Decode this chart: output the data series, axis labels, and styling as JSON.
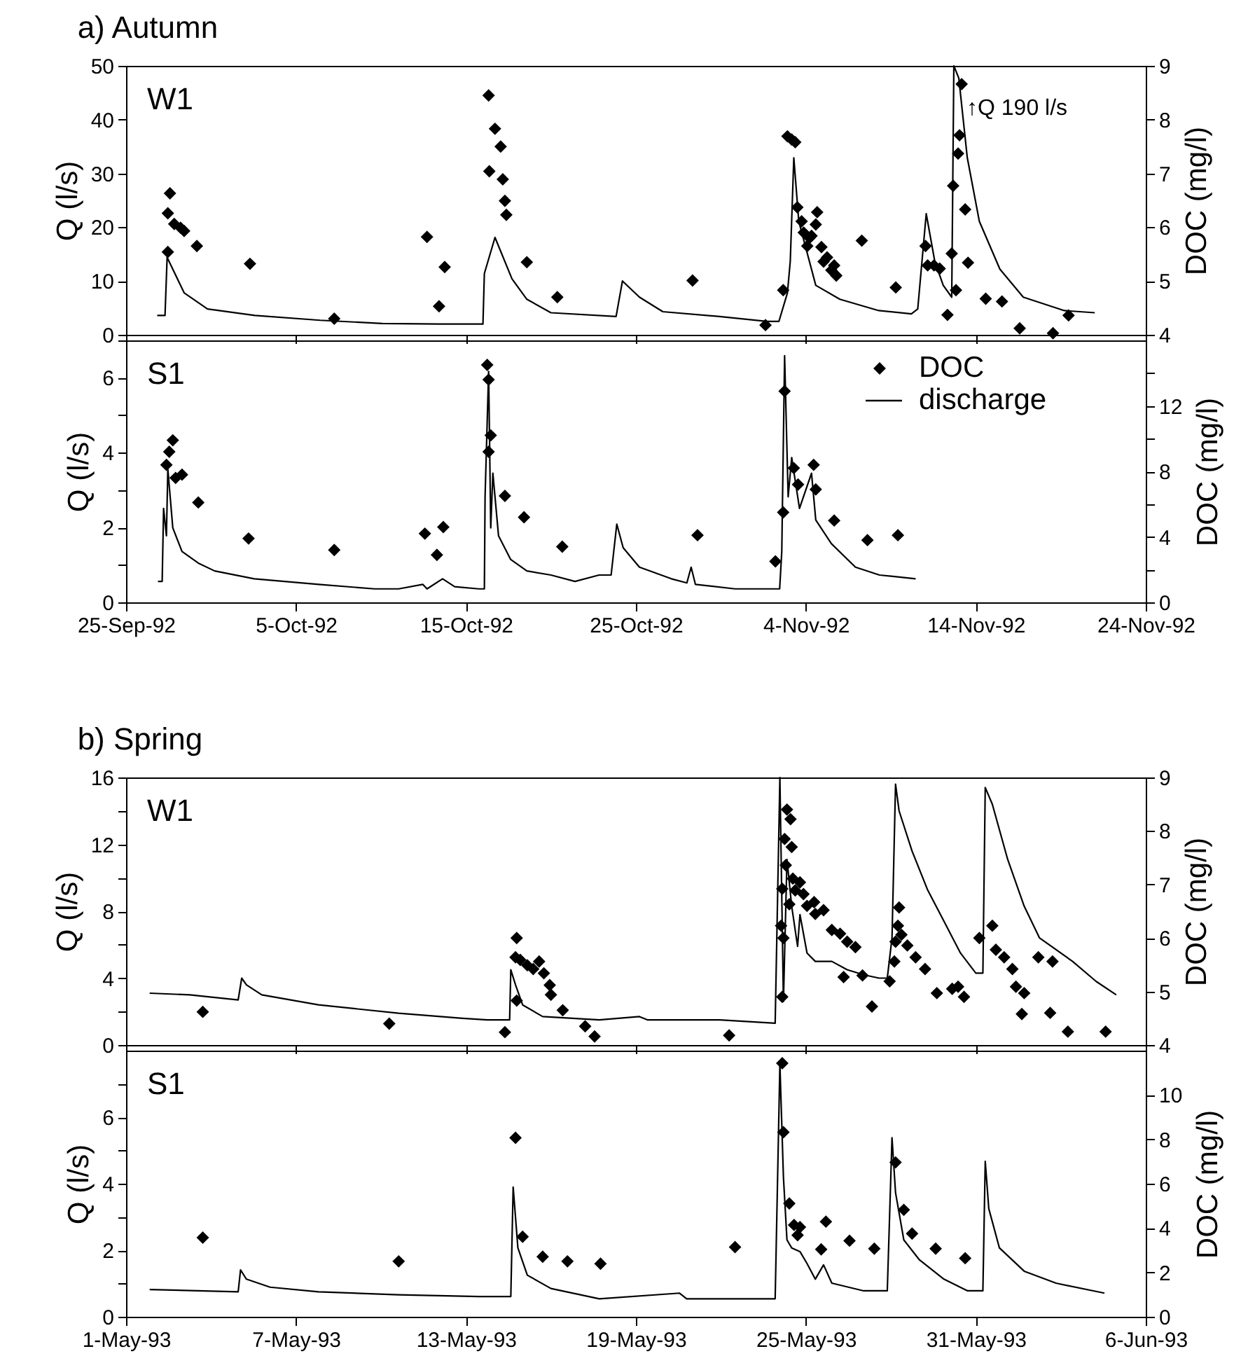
{
  "chart_data": [
    {
      "type": "line",
      "title": "a) Autumn",
      "ylabel": "Q (l/s)",
      "y2label": "DOC (mg/l)",
      "annotations": [
        "W1",
        "↑Q 190 l/s"
      ],
      "xlim": [
        "1992-09-25",
        "1992-11-24"
      ],
      "xticks": [
        {
          "value": "1992-09-25",
          "label": null
        },
        {
          "value": "1992-10-05",
          "label": null
        },
        {
          "value": "1992-10-15",
          "label": null
        },
        {
          "value": "1992-10-25",
          "label": null
        },
        {
          "value": "1992-11-04",
          "label": null
        },
        {
          "value": "1992-11-14",
          "label": null
        },
        {
          "value": "1992-11-24",
          "label": null
        }
      ],
      "ylim": [
        0,
        50
      ],
      "yticks": [
        0,
        10,
        20,
        30,
        40,
        50
      ],
      "y2lim": [
        4,
        9
      ],
      "y2ticks": [
        4,
        5,
        6,
        7,
        8,
        9
      ],
      "tick_labels": "y",
      "series": [
        {
          "type": "scatter",
          "axis": "y2",
          "color": "#000000",
          "marker": "diamond",
          "x": [
            "1992-09-27T11:00",
            "1992-09-27T11:00",
            "1992-09-27T14:00",
            "1992-09-27T20:00",
            "1992-09-28T05:00",
            "1992-09-28T10:00",
            "1992-09-29T04:00",
            "1992-10-02T07:00",
            "1992-10-07T06:00",
            "1992-10-12T17:00",
            "1992-10-13T10:00",
            "1992-10-13T18:00",
            "1992-10-16T08:00",
            "1992-10-16T09:00",
            "1992-10-16T17:00",
            "1992-10-17T01:00",
            "1992-10-17T04:00",
            "1992-10-17T07:00",
            "1992-10-17T09:00",
            "1992-10-18T14:00",
            "1992-10-20T09:00",
            "1992-10-28T08:00",
            "1992-11-01T15:00",
            "1992-11-02T16:00",
            "1992-11-02T22:00",
            "1992-11-03T04:00",
            "1992-11-03T09:00",
            "1992-11-03T12:00",
            "1992-11-03T18:00",
            "1992-11-03T21:00",
            "1992-11-04T02:00",
            "1992-11-04T05:00",
            "1992-11-04T08:00",
            "1992-11-04T14:00",
            "1992-11-04T16:00",
            "1992-11-04T22:00",
            "1992-11-05T01:00",
            "1992-11-05T06:00",
            "1992-11-05T12:00",
            "1992-11-05T16:00",
            "1992-11-05T19:00",
            "1992-11-07T07:00",
            "1992-11-09T07:00",
            "1992-11-11T01:00",
            "1992-11-11T04:00",
            "1992-11-11T13:00",
            "1992-11-11T21:00",
            "1992-11-12T08:00",
            "1992-11-12T14:00",
            "1992-11-12T16:00",
            "1992-11-12T20:00",
            "1992-11-12T23:00",
            "1992-11-13T01:00",
            "1992-11-13T04:00",
            "1992-11-13T09:00",
            "1992-11-13T13:00",
            "1992-11-14T14:00",
            "1992-11-15T13:00",
            "1992-11-16T14:00",
            "1992-11-18T13:00",
            "1992-11-19T11:00"
          ],
          "values": [
            5.54,
            6.26,
            6.63,
            6.06,
            5.99,
            5.93,
            5.65,
            5.32,
            4.3,
            5.82,
            4.53,
            5.26,
            8.45,
            7.04,
            7.83,
            7.5,
            6.89,
            6.49,
            6.23,
            5.35,
            4.7,
            5.01,
            4.18,
            4.83,
            7.69,
            7.63,
            7.58,
            6.37,
            6.11,
            5.9,
            5.65,
            5.8,
            5.84,
            6.05,
            6.28,
            5.63,
            5.36,
            5.44,
            5.2,
            5.29,
            5.1,
            5.75,
            4.88,
            5.65,
            5.29,
            5.29,
            5.23,
            4.37,
            5.51,
            6.77,
            4.83,
            7.37,
            7.71,
            8.66,
            6.33,
            5.34,
            4.67,
            4.62,
            4.12,
            4.03,
            4.36
          ]
        },
        {
          "color": "#000000",
          "x": [
            "1992-09-26T20:00",
            "1992-09-27T07:00",
            "1992-09-27T10:00",
            "1992-09-28T10:00",
            "1992-09-29T19:00",
            "1992-10-02T14:00",
            "1992-10-06T10:00",
            "1992-10-10T02:00",
            "1992-10-13T10:00",
            "1992-10-16T00:00",
            "1992-10-16T02:00",
            "1992-10-16T17:00",
            "1992-10-17T17:00",
            "1992-10-18T14:00",
            "1992-10-20T00:00",
            "1992-10-23T20:00",
            "1992-10-24T05:00",
            "1992-10-25T05:00",
            "1992-10-26T14:00",
            "1992-10-29T22:00",
            "1992-11-01T17:00",
            "1992-11-02T10:00",
            "1992-11-02T22:00",
            "1992-11-03T02:00",
            "1992-11-03T07:00",
            "1992-11-03T14:00",
            "1992-11-04T14:00",
            "1992-11-06T00:00",
            "1992-11-08T07:00",
            "1992-11-10T05:00",
            "1992-11-10T14:00",
            "1992-11-11T02:00",
            "1992-11-11T14:00",
            "1992-11-12T02:00",
            "1992-11-12T14:00",
            "1992-11-12T17:00",
            "1992-11-13T00:00",
            "1992-11-13T12:00",
            "1992-11-14T05:00",
            "1992-11-15T10:00",
            "1992-11-16T19:00",
            "1992-11-19T05:00",
            "1992-11-21T00:00"
          ],
          "values": [
            3.6,
            3.6,
            14.4,
            7.8,
            4.8,
            3.6,
            2.7,
            2.1,
            2.0,
            2.0,
            11.4,
            18.1,
            10.4,
            6.6,
            4.1,
            3.4,
            10.0,
            7.0,
            4.3,
            3.4,
            2.5,
            2.5,
            7.8,
            13.7,
            32.9,
            21.1,
            9.2,
            6.6,
            4.5,
            3.9,
            4.8,
            22.5,
            13.7,
            9.2,
            7.0,
            50,
            47.7,
            32.9,
            21.1,
            12.2,
            7.0,
            4.5,
            4.1
          ]
        }
      ]
    },
    {
      "type": "line",
      "ylabel": "Q (l/s)",
      "y2label": "DOC (mg/l)",
      "annotations": [
        "S1"
      ],
      "legend": "top right",
      "xlim": [
        "1992-09-25",
        "1992-11-24"
      ],
      "xticks": [
        {
          "value": "1992-09-25",
          "label": "25-Sep-92"
        },
        {
          "value": "1992-10-05",
          "label": "5-Oct-92"
        },
        {
          "value": "1992-10-15",
          "label": "15-Oct-92"
        },
        {
          "value": "1992-10-25",
          "label": "25-Oct-92"
        },
        {
          "value": "1992-11-04",
          "label": "4-Nov-92"
        },
        {
          "value": "1992-11-14",
          "label": "14-Nov-92"
        },
        {
          "value": "1992-11-24",
          "label": "24-Nov-92"
        }
      ],
      "ylim": [
        0,
        7
      ],
      "yticks": [
        0,
        {
          "value": 1,
          "label": null
        },
        2,
        {
          "value": 3,
          "label": null
        },
        4,
        {
          "value": 5,
          "label": null
        },
        6,
        {
          "value": 7,
          "label": null
        }
      ],
      "y2lim": [
        0,
        16
      ],
      "y2ticks": [
        0,
        {
          "value": 2,
          "label": null
        },
        4,
        {
          "value": 6,
          "label": null
        },
        8,
        {
          "value": 10,
          "label": null
        },
        12,
        {
          "value": 14,
          "label": null
        }
      ],
      "series": [
        {
          "name": "DOC",
          "type": "scatter",
          "axis": "y2",
          "color": "#000000",
          "marker": "diamond",
          "x": [
            "1992-09-27T09:00",
            "1992-09-27T13:00",
            "1992-09-27T18:00",
            "1992-09-27T22:00",
            "1992-09-28T07:00",
            "1992-09-29T06:00",
            "1992-10-02T05:00",
            "1992-10-07T06:00",
            "1992-10-12T14:00",
            "1992-10-13T07:00",
            "1992-10-13T16:00",
            "1992-10-16T06:00",
            "1992-10-16T08:00",
            "1992-10-16T08:00",
            "1992-10-16T11:00",
            "1992-10-17T07:00",
            "1992-10-18T10:00",
            "1992-10-20T16:00",
            "1992-10-28T15:00",
            "1992-11-02T05:00",
            "1992-11-02T16:00",
            "1992-11-02T18:00",
            "1992-11-03T07:00",
            "1992-11-03T13:00",
            "1992-11-04T11:00",
            "1992-11-04T14:00",
            "1992-11-05T16:00",
            "1992-11-07T15:00",
            "1992-11-09T10:00"
          ],
          "values": [
            8.4,
            9.2,
            9.9,
            7.6,
            7.8,
            6.1,
            3.9,
            3.2,
            4.2,
            2.9,
            4.6,
            14.5,
            13.6,
            9.2,
            10.2,
            6.5,
            5.2,
            3.4,
            4.1,
            2.5,
            5.5,
            12.9,
            8.2,
            7.2,
            8.4,
            6.9,
            5.0,
            3.8,
            4.1
          ]
        },
        {
          "name": "discharge",
          "color": "#000000",
          "x": [
            "1992-09-26T21:00",
            "1992-09-27T03:00",
            "1992-09-27T05:00",
            "1992-09-27T09:00",
            "1992-09-27T11:00",
            "1992-09-27T18:00",
            "1992-09-28T07:00",
            "1992-09-29T06:00",
            "1992-09-30T05:00",
            "1992-10-02T13:00",
            "1992-10-06T08:00",
            "1992-10-09T15:00",
            "1992-10-11T01:00",
            "1992-10-12T11:00",
            "1992-10-12T17:00",
            "1992-10-13T15:00",
            "1992-10-14T08:00",
            "1992-10-15T18:00",
            "1992-10-16T02:00",
            "1992-10-16T03:00",
            "1992-10-16T08:00",
            "1992-10-16T11:00",
            "1992-10-16T14:00",
            "1992-10-16T22:00",
            "1992-10-17T15:00",
            "1992-10-18T14:00",
            "1992-10-20T00:00",
            "1992-10-21T10:00",
            "1992-10-22T20:00",
            "1992-10-23T13:00",
            "1992-10-23T21:00",
            "1992-10-24T06:00",
            "1992-10-25T05:00",
            "1992-10-27T02:00",
            "1992-10-28T00:00",
            "1992-10-28T06:00",
            "1992-10-28T12:00",
            "1992-10-30T20:00",
            "1992-11-02T11:00",
            "1992-11-02T14:00",
            "1992-11-02T18:00",
            "1992-11-02T23:00",
            "1992-11-03T04:00",
            "1992-11-03T15:00",
            "1992-11-04T08:00",
            "1992-11-04T14:00",
            "1992-11-05T12:00",
            "1992-11-06T22:00",
            "1992-11-08T08:00",
            "1992-11-10T11:00"
          ],
          "values": [
            0.56,
            0.56,
            2.51,
            1.78,
            3.56,
            1.99,
            1.36,
            1.05,
            0.84,
            0.63,
            0.48,
            0.36,
            0.36,
            0.48,
            0.36,
            0.63,
            0.42,
            0.36,
            0.36,
            2.82,
            6.17,
            1.99,
            3.45,
            1.78,
            1.15,
            0.84,
            0.73,
            0.56,
            0.73,
            0.73,
            2.09,
            1.46,
            0.94,
            0.63,
            0.52,
            0.94,
            0.48,
            0.36,
            0.36,
            1.36,
            6.59,
            2.82,
            3.87,
            2.51,
            3.45,
            2.2,
            1.57,
            0.94,
            0.73,
            0.63
          ]
        }
      ]
    },
    {
      "type": "line",
      "title": "b) Spring",
      "ylabel": "Q (l/s)",
      "y2label": "DOC (mg/l)",
      "annotations": [
        "W1"
      ],
      "xlim": [
        "1993-05-01",
        "1993-06-06"
      ],
      "xticks": [
        {
          "value": "1993-05-01",
          "label": null
        },
        {
          "value": "1993-05-07",
          "label": null
        },
        {
          "value": "1993-05-13",
          "label": null
        },
        {
          "value": "1993-05-19",
          "label": null
        },
        {
          "value": "1993-05-25",
          "label": null
        },
        {
          "value": "1993-05-31",
          "label": null
        },
        {
          "value": "1993-06-06",
          "label": null
        }
      ],
      "ylim": [
        0,
        16
      ],
      "yticks": [
        0,
        {
          "value": 2,
          "label": null
        },
        4,
        {
          "value": 6,
          "label": null
        },
        8,
        {
          "value": 10,
          "label": null
        },
        12,
        {
          "value": 14,
          "label": null
        },
        16
      ],
      "y2lim": [
        4,
        9
      ],
      "y2ticks": [
        4,
        5,
        6,
        7,
        8,
        9
      ],
      "tick_labels": "y",
      "series": [
        {
          "type": "scatter",
          "axis": "y2",
          "color": "#000000",
          "marker": "diamond",
          "x": [
            "1993-05-03T17:00",
            "1993-05-10T07:00",
            "1993-05-14T09:00",
            "1993-05-14T18:00",
            "1993-05-14T19:00",
            "1993-05-14T19:00",
            "1993-05-14T22:00",
            "1993-05-15T04:00",
            "1993-05-15T09:00",
            "1993-05-15T14:00",
            "1993-05-15T18:00",
            "1993-05-15T23:00",
            "1993-05-16T00:00",
            "1993-05-16T10:00",
            "1993-05-17T05:00",
            "1993-05-17T13:00",
            "1993-05-22T07:00",
            "1993-05-24T03:00",
            "1993-05-24T04:00",
            "1993-05-24T04:00",
            "1993-05-24T05:00",
            "1993-05-24T06:00",
            "1993-05-24T07:00",
            "1993-05-24T08:00",
            "1993-05-24T10:00",
            "1993-05-24T11:00",
            "1993-05-24T12:00",
            "1993-05-24T13:00",
            "1993-05-24T15:00",
            "1993-05-24T19:00",
            "1993-05-24T22:00",
            "1993-05-25T01:00",
            "1993-05-25T07:00",
            "1993-05-25T08:00",
            "1993-05-25T15:00",
            "1993-05-25T22:00",
            "1993-05-26T05:00",
            "1993-05-26T08:00",
            "1993-05-26T11:00",
            "1993-05-26T18:00",
            "1993-05-27T00:00",
            "1993-05-27T08:00",
            "1993-05-27T23:00",
            "1993-05-28T03:00",
            "1993-05-28T04:00",
            "1993-05-28T06:00",
            "1993-05-28T07:00",
            "1993-05-28T09:00",
            "1993-05-28T14:00",
            "1993-05-28T21:00",
            "1993-05-29T05:00",
            "1993-05-29T15:00",
            "1993-05-30T04:00",
            "1993-05-30T09:00",
            "1993-05-30T14:00",
            "1993-05-31T03:00",
            "1993-05-31T14:00",
            "1993-05-31T17:00",
            "1993-06-01T00:00",
            "1993-06-01T07:00",
            "1993-06-01T10:00",
            "1993-06-01T15:00",
            "1993-06-01T17:00",
            "1993-06-02T05:00",
            "1993-06-02T15:00",
            "1993-06-02T17:00",
            "1993-06-03T06:00",
            "1993-06-04T14:00"
          ],
          "values": [
            4.62,
            4.4,
            4.24,
            5.64,
            6.0,
            4.83,
            5.59,
            5.49,
            5.42,
            5.56,
            5.34,
            5.12,
            4.94,
            4.65,
            4.35,
            4.16,
            4.18,
            6.23,
            4.9,
            6.92,
            6.0,
            7.85,
            7.36,
            8.4,
            6.63,
            8.22,
            7.7,
            7.11,
            6.89,
            7.04,
            6.82,
            6.6,
            6.67,
            6.45,
            6.52,
            6.15,
            6.08,
            5.27,
            5.93,
            5.83,
            5.3,
            4.72,
            5.19,
            5.56,
            5.93,
            6.23,
            6.57,
            6.06,
            5.86,
            5.64,
            5.42,
            4.97,
            5.05,
            5.09,
            4.9,
            6.0,
            6.23,
            5.78,
            5.64,
            5.42,
            5.09,
            4.58,
            4.97,
            5.64,
            4.6,
            5.56,
            4.25,
            4.25
          ]
        },
        {
          "color": "#000000",
          "x": [
            "1993-05-01T20:00",
            "1993-05-03T06:00",
            "1993-05-04T23:00",
            "1993-05-05T02:00",
            "1993-05-05T06:00",
            "1993-05-05T19:00",
            "1993-05-07T19:00",
            "1993-05-10T15:00",
            "1993-05-12T21:00",
            "1993-05-13T18:00",
            "1993-05-14T13:00",
            "1993-05-14T14:00",
            "1993-05-14T18:00",
            "1993-05-15T00:00",
            "1993-05-15T17:00",
            "1993-05-17T17:00",
            "1993-05-19T03:00",
            "1993-05-19T10:00",
            "1993-05-21T23:00",
            "1993-05-23T22:00",
            "1993-05-24T02:00",
            "1993-05-24T05:00",
            "1993-05-24T08:00",
            "1993-05-24T12:00",
            "1993-05-24T17:00",
            "1993-05-24T19:00",
            "1993-05-25T01:00",
            "1993-05-25T08:00",
            "1993-05-25T22:00",
            "1993-05-26T11:00",
            "1993-05-27T01:00",
            "1993-05-27T14:00",
            "1993-05-27T21:00",
            "1993-05-28T01:00",
            "1993-05-28T04:00",
            "1993-05-28T07:00",
            "1993-05-28T18:00",
            "1993-05-29T07:00",
            "1993-05-29T21:00",
            "1993-05-30T11:00",
            "1993-05-31T00:00",
            "1993-05-31T06:00",
            "1993-05-31T08:00",
            "1993-05-31T14:00",
            "1993-06-01T03:00",
            "1993-06-01T17:00",
            "1993-06-02T06:00",
            "1993-06-03T10:00",
            "1993-06-04T06:00",
            "1993-06-04T23:00"
          ],
          "values": [
            3.1,
            3.0,
            2.7,
            4.0,
            3.6,
            3.0,
            2.4,
            1.9,
            1.6,
            1.5,
            1.5,
            4.5,
            3.6,
            2.4,
            1.7,
            1.5,
            1.7,
            1.5,
            1.5,
            1.3,
            16,
            2.6,
            11.1,
            8.3,
            5.9,
            7.8,
            5.5,
            5.0,
            5.0,
            4.5,
            4.2,
            4.0,
            4.0,
            6.4,
            15.6,
            14.0,
            11.6,
            9.3,
            7.4,
            5.5,
            4.3,
            4.3,
            15.4,
            14.4,
            11.1,
            8.3,
            6.4,
            5.0,
            3.8,
            3.0
          ]
        }
      ]
    },
    {
      "type": "line",
      "ylabel": "Q (l/s)",
      "y2label": "DOC (mg/l)",
      "annotations": [
        "S1"
      ],
      "xlim": [
        "1993-05-01",
        "1993-06-06"
      ],
      "xticks": [
        {
          "value": "1993-05-01",
          "label": "1-May-93"
        },
        {
          "value": "1993-05-07",
          "label": "7-May-93"
        },
        {
          "value": "1993-05-13",
          "label": "13-May-93"
        },
        {
          "value": "1993-05-19",
          "label": "19-May-93"
        },
        {
          "value": "1993-05-25",
          "label": "25-May-93"
        },
        {
          "value": "1993-05-31",
          "label": "31-May-93"
        },
        {
          "value": "1993-06-06",
          "label": "6-Jun-93"
        }
      ],
      "ylim": [
        0,
        8
      ],
      "yticks": [
        0,
        {
          "value": 1,
          "label": null
        },
        2,
        {
          "value": 3,
          "label": null
        },
        4,
        {
          "value": 5,
          "label": null
        },
        6,
        {
          "value": 7,
          "label": null
        }
      ],
      "y2lim": [
        0,
        12
      ],
      "y2ticks": [
        0,
        2,
        4,
        6,
        8,
        10
      ],
      "series": [
        {
          "type": "scatter",
          "axis": "y2",
          "color": "#000000",
          "marker": "diamond",
          "x": [
            "1993-05-03T17:00",
            "1993-05-10T15:00",
            "1993-05-14T18:00",
            "1993-05-15T00:00",
            "1993-05-15T17:00",
            "1993-05-16T14:00",
            "1993-05-17T18:00",
            "1993-05-22T12:00",
            "1993-05-24T04:00",
            "1993-05-24T05:00",
            "1993-05-24T10:00",
            "1993-05-24T14:00",
            "1993-05-24T17:00",
            "1993-05-24T19:00",
            "1993-05-25T13:00",
            "1993-05-25T17:00",
            "1993-05-26T13:00",
            "1993-05-27T10:00",
            "1993-05-28T04:00",
            "1993-05-28T11:00",
            "1993-05-28T18:00",
            "1993-05-29T14:00",
            "1993-05-30T15:00"
          ],
          "values": [
            3.57,
            2.5,
            8.07,
            3.61,
            2.71,
            2.5,
            2.39,
            3.14,
            11.43,
            8.32,
            5.11,
            4.14,
            3.68,
            4.04,
            3.04,
            4.29,
            3.43,
            3.07,
            6.96,
            4.82,
            3.75,
            3.07,
            2.64
          ]
        },
        {
          "color": "#000000",
          "x": [
            "1993-05-01T20:00",
            "1993-05-04T23:00",
            "1993-05-05T01:00",
            "1993-05-05T06:00",
            "1993-05-06T02:00",
            "1993-05-07T19:00",
            "1993-05-10T15:00",
            "1993-05-13T11:00",
            "1993-05-14T14:00",
            "1993-05-14T16:00",
            "1993-05-14T20:00",
            "1993-05-15T04:00",
            "1993-05-16T00:00",
            "1993-05-17T17:00",
            "1993-05-20T13:00",
            "1993-05-20T19:00",
            "1993-05-23T22:00",
            "1993-05-24T02:00",
            "1993-05-24T05:00",
            "1993-05-24T08:00",
            "1993-05-24T12:00",
            "1993-05-24T19:00",
            "1993-05-25T01:00",
            "1993-05-25T08:00",
            "1993-05-25T15:00",
            "1993-05-25T22:00",
            "1993-05-27T01:00",
            "1993-05-27T21:00",
            "1993-05-28T01:00",
            "1993-05-28T04:00",
            "1993-05-28T11:00",
            "1993-05-29T00:00",
            "1993-05-29T21:00",
            "1993-05-30T17:00",
            "1993-05-31T06:00",
            "1993-05-31T08:00",
            "1993-05-31T11:00",
            "1993-05-31T20:00",
            "1993-06-01T17:00",
            "1993-06-02T20:00",
            "1993-06-04T13:00"
          ],
          "values": [
            0.82,
            0.75,
            1.41,
            1.13,
            0.89,
            0.75,
            0.66,
            0.61,
            0.61,
            3.9,
            2.07,
            1.25,
            0.85,
            0.54,
            0.71,
            0.54,
            0.54,
            7.6,
            4.2,
            2.31,
            2.07,
            1.96,
            1.6,
            1.13,
            1.56,
            1.01,
            0.78,
            0.78,
            5.38,
            3.73,
            2.31,
            1.72,
            1.13,
            0.78,
            0.78,
            4.67,
            3.25,
            2.07,
            1.37,
            1.01,
            0.71
          ]
        }
      ]
    }
  ]
}
